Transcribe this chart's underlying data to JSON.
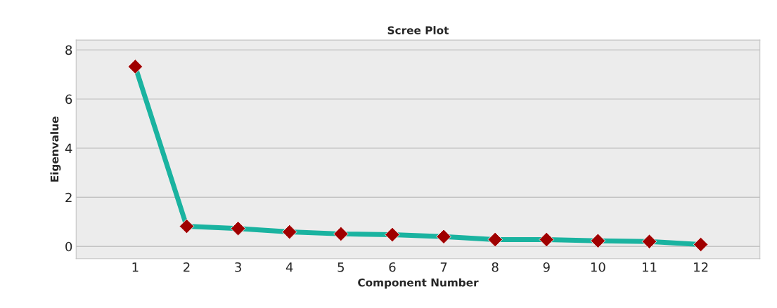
{
  "chart_data": {
    "type": "line",
    "title": "Scree Plot",
    "xlabel": "Component Number",
    "ylabel": "Eigenvalue",
    "x": [
      1,
      2,
      3,
      4,
      5,
      6,
      7,
      8,
      9,
      10,
      11,
      12
    ],
    "series": [
      {
        "color": "#1ab3a0",
        "colors": [
          "#a00000",
          "#a00000",
          "#a00000",
          "#a00000",
          "#a00000",
          "#a00000",
          "#a00000",
          "#a00000",
          "#a00000",
          "#a00000",
          "#a00000",
          "#a00000"
        ],
        "values": [
          7.32,
          0.82,
          0.73,
          0.59,
          0.51,
          0.48,
          0.4,
          0.28,
          0.28,
          0.23,
          0.2,
          0.08
        ]
      }
    ],
    "xlim": [
      -0.15,
      13.15
    ],
    "xticks": [
      1,
      2,
      3,
      4,
      5,
      6,
      7,
      8,
      9,
      10,
      11,
      12
    ],
    "ylim": [
      -0.5,
      8.4
    ],
    "yticks": [
      0,
      2,
      4,
      6,
      8
    ],
    "grid": "y",
    "marker": "diamond",
    "line_style": "solid",
    "legend": false
  }
}
